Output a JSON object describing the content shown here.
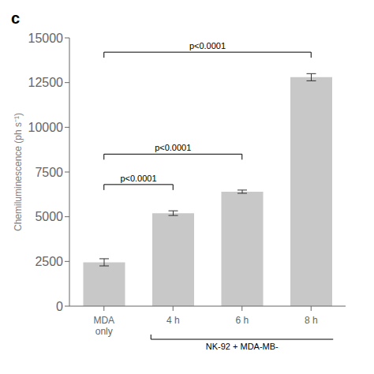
{
  "chart_data": {
    "type": "bar",
    "categories": [
      "MDA\nonly",
      "4 h",
      "6 h",
      "8 h"
    ],
    "values": [
      2450,
      5200,
      6400,
      12800
    ],
    "errors": [
      200,
      130,
      90,
      200
    ],
    "color": "#c8c8c8",
    "ylabel": "Chemiluminescence (ph s⁻¹)",
    "ylim": [
      0,
      15000
    ],
    "yticks": [
      0,
      2500,
      5000,
      7500,
      10000,
      12500,
      15000
    ],
    "grid": false,
    "brackets": [
      {
        "from": "MDA\nonly",
        "to": "4 h",
        "y": 6800,
        "label": "p<0.0001"
      },
      {
        "from": "MDA\nonly",
        "to": "6 h",
        "y": 8500,
        "label": "p<0.0001"
      },
      {
        "from": "MDA\nonly",
        "to": "8 h",
        "y": 14200,
        "label": "p<0.0001"
      }
    ],
    "annotations": [
      {
        "text": "c"
      },
      {
        "text": "NK-92 + MDA-MB-",
        "from": "4 h",
        "to": "8 h"
      }
    ]
  }
}
